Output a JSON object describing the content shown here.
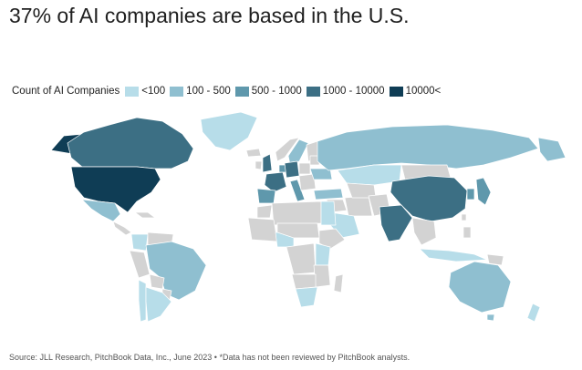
{
  "title": "37% of AI companies are based in the U.S.",
  "legend": {
    "title": "Count of AI Companies",
    "items": [
      {
        "label": "<100",
        "color": "#b7dde9"
      },
      {
        "label": "100 - 500",
        "color": "#8fbfd0"
      },
      {
        "label": "500 - 1000",
        "color": "#5f98ac"
      },
      {
        "label": "1000 - 10000",
        "color": "#3c6f84"
      },
      {
        "label": "10000<",
        "color": "#0f3d55"
      }
    ]
  },
  "no_data_color": "#d3d3d3",
  "source": "Source: JLL Research, PitchBook Data, Inc., June 2023 • *Data has not been reviewed by PitchBook analysts.",
  "chart_data": {
    "type": "choropleth",
    "measure": "Count of AI Companies",
    "bins": [
      "<100",
      "100 - 500",
      "500 - 1000",
      "1000 - 10000",
      "10000<"
    ],
    "regions": [
      {
        "region": "United States",
        "bin": "10000<"
      },
      {
        "region": "Canada",
        "bin": "1000 - 10000"
      },
      {
        "region": "China",
        "bin": "1000 - 10000"
      },
      {
        "region": "India",
        "bin": "1000 - 10000"
      },
      {
        "region": "United Kingdom",
        "bin": "1000 - 10000"
      },
      {
        "region": "Germany",
        "bin": "1000 - 10000"
      },
      {
        "region": "France",
        "bin": "1000 - 10000"
      },
      {
        "region": "Japan",
        "bin": "500 - 1000"
      },
      {
        "region": "South Korea",
        "bin": "500 - 1000"
      },
      {
        "region": "Israel",
        "bin": "500 - 1000"
      },
      {
        "region": "Spain",
        "bin": "500 - 1000"
      },
      {
        "region": "Italy",
        "bin": "500 - 1000"
      },
      {
        "region": "Netherlands",
        "bin": "500 - 1000"
      },
      {
        "region": "Australia",
        "bin": "100 - 500"
      },
      {
        "region": "Brazil",
        "bin": "100 - 500"
      },
      {
        "region": "Russia",
        "bin": "100 - 500"
      },
      {
        "region": "Mexico",
        "bin": "100 - 500"
      },
      {
        "region": "Ukraine",
        "bin": "100 - 500"
      },
      {
        "region": "Sweden",
        "bin": "100 - 500"
      },
      {
        "region": "Turkey",
        "bin": "100 - 500"
      },
      {
        "region": "Singapore",
        "bin": "100 - 500"
      },
      {
        "region": "Argentina",
        "bin": "<100"
      },
      {
        "region": "Chile",
        "bin": "<100"
      },
      {
        "region": "Colombia",
        "bin": "<100"
      },
      {
        "region": "Greenland",
        "bin": "<100"
      },
      {
        "region": "Kazakhstan",
        "bin": "<100"
      },
      {
        "region": "Egypt",
        "bin": "<100"
      },
      {
        "region": "South Africa",
        "bin": "<100"
      },
      {
        "region": "Nigeria",
        "bin": "<100"
      },
      {
        "region": "Kenya",
        "bin": "<100"
      },
      {
        "region": "Saudi Arabia",
        "bin": "<100"
      },
      {
        "region": "Indonesia",
        "bin": "<100"
      },
      {
        "region": "New Zealand",
        "bin": "<100"
      }
    ]
  }
}
